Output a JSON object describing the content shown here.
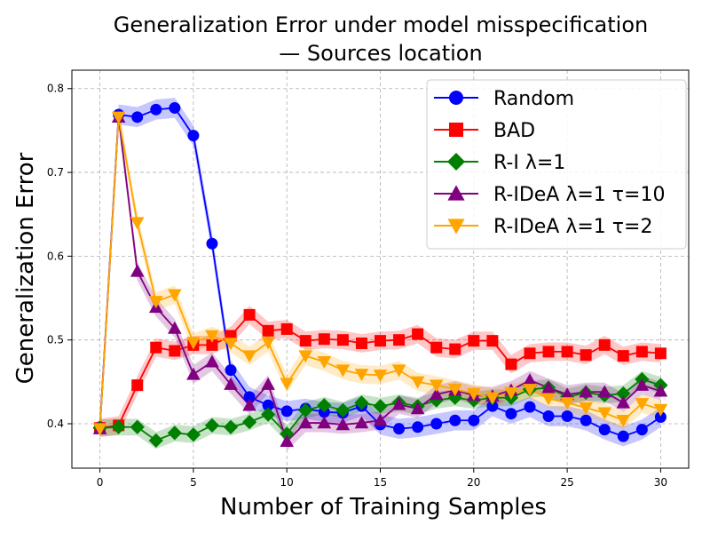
{
  "chart_data": {
    "type": "line",
    "title_line1": "Generalization Error under model misspecification",
    "title_line2": "— Sources location",
    "xlabel": "Number of Training Samples",
    "ylabel": "Generalization Error",
    "xlim": [
      -1.5,
      31.5
    ],
    "ylim": [
      0.347,
      0.822
    ],
    "x_ticks": [
      0,
      5,
      10,
      15,
      20,
      25,
      30
    ],
    "y_ticks": [
      0.4,
      0.5,
      0.6,
      0.7,
      0.8
    ],
    "y_tick_labels": [
      "0.4",
      "0.5",
      "0.6",
      "0.7",
      "0.8"
    ],
    "grid": true,
    "legend_position": "top-right",
    "x": [
      0,
      1,
      2,
      3,
      4,
      5,
      6,
      7,
      8,
      9,
      10,
      11,
      12,
      13,
      14,
      15,
      16,
      17,
      18,
      19,
      20,
      21,
      22,
      23,
      24,
      25,
      26,
      27,
      28,
      29,
      30
    ],
    "series": [
      {
        "name": "Random",
        "color": "#0000ff",
        "marker": "circle",
        "values": [
          0.396,
          0.769,
          0.766,
          0.775,
          0.777,
          0.744,
          0.615,
          0.464,
          0.432,
          0.422,
          0.415,
          0.418,
          0.414,
          0.413,
          0.421,
          0.399,
          0.394,
          0.396,
          0.4,
          0.404,
          0.404,
          0.421,
          0.412,
          0.42,
          0.409,
          0.409,
          0.404,
          0.393,
          0.385,
          0.393,
          0.408
        ],
        "band": 0.012
      },
      {
        "name": "BAD",
        "color": "#ff0000",
        "marker": "square",
        "values": [
          0.395,
          0.398,
          0.446,
          0.491,
          0.487,
          0.494,
          0.494,
          0.505,
          0.53,
          0.511,
          0.513,
          0.499,
          0.501,
          0.5,
          0.496,
          0.499,
          0.5,
          0.507,
          0.491,
          0.489,
          0.499,
          0.499,
          0.471,
          0.484,
          0.486,
          0.486,
          0.482,
          0.494,
          0.481,
          0.486,
          0.484
        ],
        "band": 0.011
      },
      {
        "name": "R-I λ=1",
        "color": "#008000",
        "marker": "diamond",
        "values": [
          0.395,
          0.396,
          0.396,
          0.38,
          0.389,
          0.387,
          0.398,
          0.396,
          0.402,
          0.411,
          0.388,
          0.416,
          0.422,
          0.416,
          0.425,
          0.421,
          0.425,
          0.421,
          0.428,
          0.431,
          0.428,
          0.431,
          0.431,
          0.441,
          0.443,
          0.432,
          0.437,
          0.434,
          0.436,
          0.453,
          0.446
        ],
        "band": 0.01
      },
      {
        "name": "R-IDeA λ=1 τ=10",
        "color": "#800080",
        "marker": "triangle-up",
        "values": [
          0.394,
          0.766,
          0.582,
          0.539,
          0.514,
          0.459,
          0.474,
          0.447,
          0.422,
          0.447,
          0.379,
          0.401,
          0.401,
          0.399,
          0.401,
          0.404,
          0.423,
          0.418,
          0.435,
          0.44,
          0.434,
          0.433,
          0.44,
          0.452,
          0.443,
          0.435,
          0.438,
          0.438,
          0.425,
          0.446,
          0.439
        ],
        "band": 0.011
      },
      {
        "name": "R-IDeA λ=1 τ=2",
        "color": "#ffa500",
        "marker": "triangle-down",
        "values": [
          0.394,
          0.766,
          0.64,
          0.546,
          0.554,
          0.497,
          0.505,
          0.496,
          0.481,
          0.497,
          0.448,
          0.481,
          0.474,
          0.464,
          0.459,
          0.458,
          0.464,
          0.45,
          0.446,
          0.441,
          0.436,
          0.431,
          0.437,
          0.441,
          0.43,
          0.425,
          0.419,
          0.413,
          0.404,
          0.424,
          0.417
        ],
        "band": 0.011
      }
    ]
  }
}
